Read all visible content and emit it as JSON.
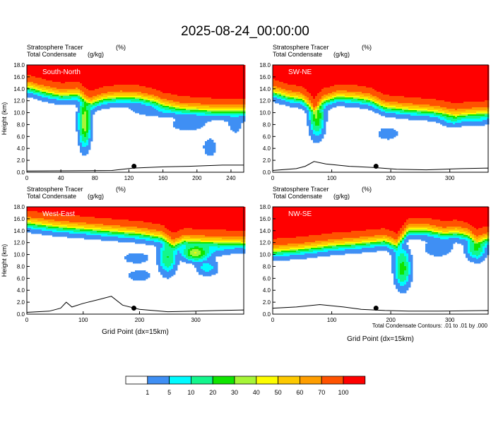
{
  "title": "2025-08-24_00:00:00",
  "chart_data": [
    {
      "type": "heatmap",
      "panel_label": "South-North",
      "left_label_1": "Stratosphere Tracer",
      "right_label_1": "(%)",
      "left_label_2": "Total Condensate",
      "right_label_2": "(g/kg)",
      "ylabel": "Height (km)",
      "xlabel": "",
      "xlim": [
        0,
        255
      ],
      "ylim": [
        0,
        18
      ],
      "xticks": [
        0,
        40,
        80,
        120,
        160,
        200,
        240
      ],
      "yticks": [
        "0.0",
        "2.0",
        "4.0",
        "6.0",
        "8.0",
        "10.0",
        "12.0",
        "14.0",
        "16.0",
        "18.0"
      ],
      "marker_x": 126,
      "tropopause": [
        [
          0,
          14.4
        ],
        [
          20,
          13.6
        ],
        [
          40,
          13.0
        ],
        [
          60,
          13.2
        ],
        [
          75,
          11.6
        ],
        [
          90,
          12.4
        ],
        [
          110,
          12.7
        ],
        [
          130,
          12.6
        ],
        [
          150,
          12.0
        ],
        [
          160,
          11.4
        ],
        [
          180,
          10.8
        ],
        [
          200,
          10.6
        ],
        [
          220,
          10.4
        ],
        [
          240,
          10.4
        ],
        [
          255,
          10.4
        ]
      ],
      "intrusions": [
        [
          68,
          8.5,
          1.2,
          3.0,
          40
        ],
        [
          190,
          8.0,
          4.0,
          0.9,
          3
        ],
        [
          215,
          4.2,
          1.4,
          1.2,
          4
        ],
        [
          245,
          8.0,
          1.8,
          1.5,
          2
        ],
        [
          155,
          10.3,
          6,
          0.8,
          3
        ]
      ],
      "terrain": [
        [
          0,
          0.2
        ],
        [
          100,
          0.3
        ],
        [
          125,
          0.7
        ],
        [
          160,
          0.9
        ],
        [
          190,
          1.0
        ],
        [
          230,
          1.2
        ],
        [
          255,
          1.2
        ]
      ]
    },
    {
      "type": "heatmap",
      "panel_label": "SW-NE",
      "left_label_1": "Stratosphere Tracer",
      "right_label_1": "(%)",
      "left_label_2": "Total Condensate",
      "right_label_2": "(g/kg)",
      "ylabel": "",
      "xlabel": "",
      "xlim": [
        0,
        365
      ],
      "ylim": [
        0,
        18
      ],
      "xticks": [
        0,
        100,
        200,
        300
      ],
      "yticks": [
        "0.0",
        "2.0",
        "4.0",
        "6.0",
        "8.0",
        "10.0",
        "12.0",
        "14.0",
        "16.0",
        "18.0"
      ],
      "marker_x": 175,
      "tropopause": [
        [
          0,
          13.6
        ],
        [
          25,
          12.8
        ],
        [
          50,
          12.4
        ],
        [
          70,
          10.5
        ],
        [
          85,
          12.0
        ],
        [
          110,
          12.8
        ],
        [
          140,
          12.6
        ],
        [
          165,
          12.2
        ],
        [
          190,
          11.0
        ],
        [
          230,
          10.6
        ],
        [
          270,
          10.3
        ],
        [
          310,
          9.6
        ],
        [
          330,
          9.8
        ],
        [
          365,
          10.0
        ]
      ],
      "intrusions": [
        [
          75,
          9.3,
          1.5,
          2.4,
          30
        ],
        [
          305,
          9.0,
          2.5,
          0.9,
          8
        ],
        [
          345,
          8.8,
          2.5,
          0.8,
          4
        ],
        [
          195,
          6.5,
          2.5,
          0.9,
          3
        ]
      ],
      "terrain": [
        [
          0,
          0.3
        ],
        [
          40,
          0.6
        ],
        [
          55,
          1.0
        ],
        [
          70,
          1.8
        ],
        [
          90,
          1.4
        ],
        [
          130,
          1.0
        ],
        [
          170,
          0.8
        ],
        [
          210,
          0.5
        ],
        [
          260,
          0.4
        ],
        [
          320,
          0.6
        ],
        [
          365,
          0.7
        ]
      ]
    },
    {
      "type": "heatmap",
      "panel_label": "West-East",
      "left_label_1": "Stratosphere Tracer",
      "right_label_1": "(%)",
      "left_label_2": "Total Condensate",
      "right_label_2": "(g/kg)",
      "ylabel": "Height (km)",
      "xlabel": "Grid Point (dx=15km)",
      "xlim": [
        0,
        385
      ],
      "ylim": [
        0,
        18
      ],
      "xticks": [
        0,
        100,
        200,
        300
      ],
      "yticks": [
        "0.0",
        "2.0",
        "4.0",
        "6.0",
        "8.0",
        "10.0",
        "12.0",
        "14.0",
        "16.0",
        "18.0"
      ],
      "marker_x": 190,
      "tropopause": [
        [
          0,
          15.4
        ],
        [
          50,
          14.8
        ],
        [
          100,
          14.4
        ],
        [
          150,
          14.0
        ],
        [
          200,
          13.6
        ],
        [
          240,
          13.0
        ],
        [
          260,
          11.6
        ],
        [
          280,
          12.4
        ],
        [
          320,
          12.2
        ],
        [
          385,
          12.0
        ]
      ],
      "intrusions": [
        [
          250,
          9.5,
          1.8,
          2.0,
          20
        ],
        [
          300,
          10.3,
          2.8,
          1.0,
          40
        ],
        [
          320,
          7.8,
          2.2,
          1.0,
          8
        ],
        [
          340,
          11.0,
          3.0,
          0.9,
          4
        ],
        [
          195,
          9.4,
          2.8,
          0.7,
          4
        ],
        [
          200,
          6.5,
          2.8,
          0.8,
          3
        ]
      ],
      "terrain": [
        [
          0,
          0.3
        ],
        [
          40,
          0.5
        ],
        [
          60,
          1.0
        ],
        [
          70,
          2.0
        ],
        [
          80,
          1.2
        ],
        [
          100,
          1.8
        ],
        [
          130,
          2.5
        ],
        [
          150,
          3.0
        ],
        [
          170,
          1.5
        ],
        [
          200,
          0.8
        ],
        [
          250,
          0.4
        ],
        [
          300,
          0.5
        ],
        [
          340,
          0.6
        ],
        [
          385,
          0.7
        ]
      ]
    },
    {
      "type": "heatmap",
      "panel_label": "NW-SE",
      "left_label_1": "Stratosphere Tracer",
      "right_label_1": "(%)",
      "left_label_2": "Total Condensate",
      "right_label_2": "(g/kg)",
      "ylabel": "",
      "xlabel": "Grid Point (dx=15km)",
      "xlim": [
        0,
        365
      ],
      "ylim": [
        0,
        18
      ],
      "xticks": [
        0,
        100,
        200,
        300
      ],
      "yticks": [
        "0.0",
        "2.0",
        "4.0",
        "6.0",
        "8.0",
        "10.0",
        "12.0",
        "14.0",
        "16.0",
        "18.0"
      ],
      "marker_x": 175,
      "tropopause": [
        [
          0,
          10.6
        ],
        [
          50,
          11.0
        ],
        [
          100,
          11.6
        ],
        [
          150,
          12.0
        ],
        [
          190,
          12.4
        ],
        [
          210,
          11.6
        ],
        [
          230,
          14.2
        ],
        [
          260,
          14.2
        ],
        [
          290,
          13.6
        ],
        [
          310,
          13.8
        ],
        [
          330,
          13.4
        ],
        [
          345,
          12.2
        ],
        [
          365,
          12.8
        ]
      ],
      "intrusions": [
        [
          220,
          7.6,
          1.6,
          2.3,
          25
        ],
        [
          280,
          11.0,
          3.5,
          1.2,
          3
        ],
        [
          345,
          11.0,
          2.0,
          1.4,
          20
        ],
        [
          215,
          10.0,
          2.0,
          1.2,
          3
        ]
      ],
      "terrain": [
        [
          0,
          1.0
        ],
        [
          40,
          1.2
        ],
        [
          80,
          1.6
        ],
        [
          120,
          1.2
        ],
        [
          150,
          0.8
        ],
        [
          190,
          0.6
        ],
        [
          230,
          0.5
        ],
        [
          280,
          0.5
        ],
        [
          365,
          0.6
        ]
      ]
    }
  ],
  "contour_note": "Total Condensate Contours: .01 to .01 by .000",
  "colorbar": {
    "labels": [
      "1",
      "5",
      "10",
      "20",
      "30",
      "40",
      "50",
      "60",
      "70",
      "100"
    ],
    "colors": [
      "#ffffff",
      "#3f8ff4",
      "#00fbff",
      "#13f68d",
      "#10e500",
      "#a6f537",
      "#fdfd00",
      "#fdc900",
      "#ff9e00",
      "#ff5200",
      "#ff0000"
    ]
  }
}
